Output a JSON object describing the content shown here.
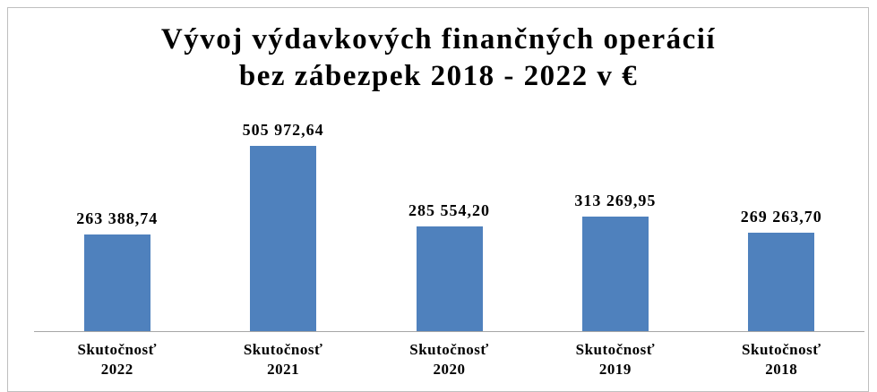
{
  "chart_data": {
    "type": "bar",
    "title": "Vývoj výdavkových finančných operácií\nbez zábezpek 2018 - 2022 v €",
    "categories": [
      "Skutočnosť\n2022",
      "Skutočnosť\n2021",
      "Skutočnosť\n2020",
      "Skutočnosť\n2019",
      "Skutočnosť\n2018"
    ],
    "values": [
      263388.74,
      505972.64,
      285554.2,
      313269.95,
      269263.7
    ],
    "value_labels": [
      "263 388,74",
      "505 972,64",
      "285 554,20",
      "313 269,95",
      "269 263,70"
    ],
    "color": "#4f81bd"
  }
}
